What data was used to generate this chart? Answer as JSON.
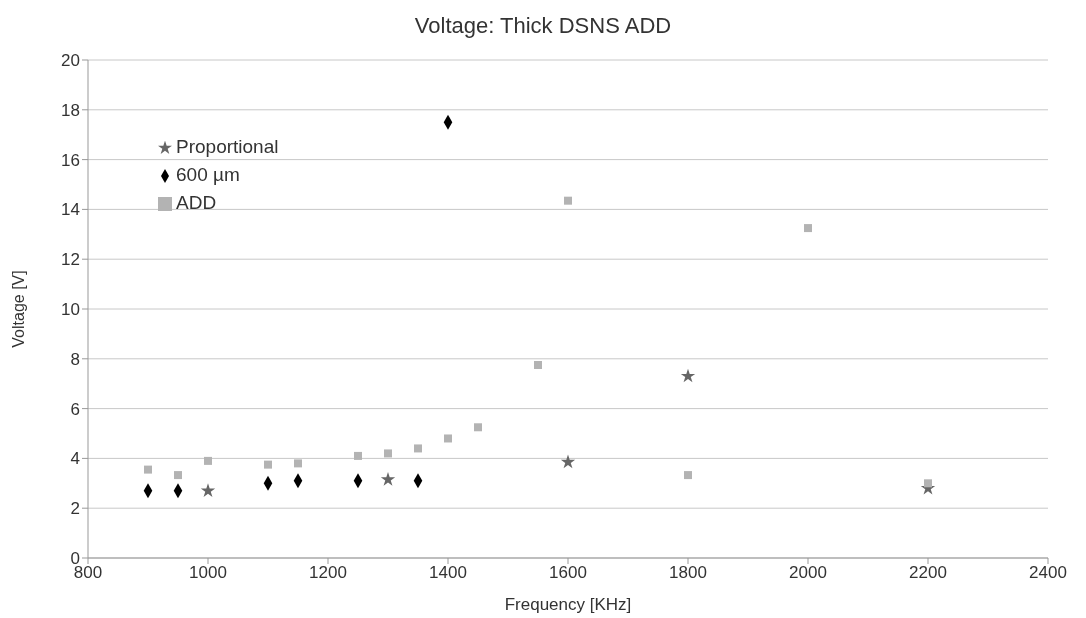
{
  "chart_data": {
    "type": "scatter",
    "title": "Voltage: Thick DSNS ADD",
    "xlabel": "Frequency [KHz]",
    "ylabel": "Voltage [V]",
    "xlim": [
      800,
      2400
    ],
    "xticks": [
      800,
      1000,
      1200,
      1400,
      1600,
      1800,
      2000,
      2200,
      2400
    ],
    "ylim": [
      0,
      20
    ],
    "yticks": [
      0,
      2,
      4,
      6,
      8,
      10,
      12,
      14,
      16,
      18,
      20
    ],
    "grid": "y",
    "legend": "top left",
    "series": [
      {
        "name": "Proportional",
        "color": "#666666",
        "marker": "star",
        "x": [
          1000,
          1300,
          1600,
          1800,
          2200
        ],
        "values": [
          2.7,
          3.15,
          3.85,
          7.3,
          2.8
        ]
      },
      {
        "name": "600 µm",
        "color": "#000000",
        "marker": "diamond",
        "x": [
          900,
          950,
          1100,
          1150,
          1250,
          1350,
          1400
        ],
        "values": [
          2.7,
          2.7,
          3.0,
          3.1,
          3.1,
          3.1,
          17.5
        ]
      },
      {
        "name": "ADD",
        "color": "#b3b3b3",
        "marker": "square",
        "x": [
          900,
          950,
          1000,
          1100,
          1150,
          1250,
          1300,
          1350,
          1400,
          1450,
          1550,
          1600,
          1800,
          2000,
          2200
        ],
        "values": [
          3.55,
          3.33,
          3.9,
          3.75,
          3.8,
          4.1,
          4.2,
          4.4,
          4.8,
          5.25,
          7.75,
          14.35,
          3.33,
          13.25,
          3.0
        ]
      }
    ]
  }
}
